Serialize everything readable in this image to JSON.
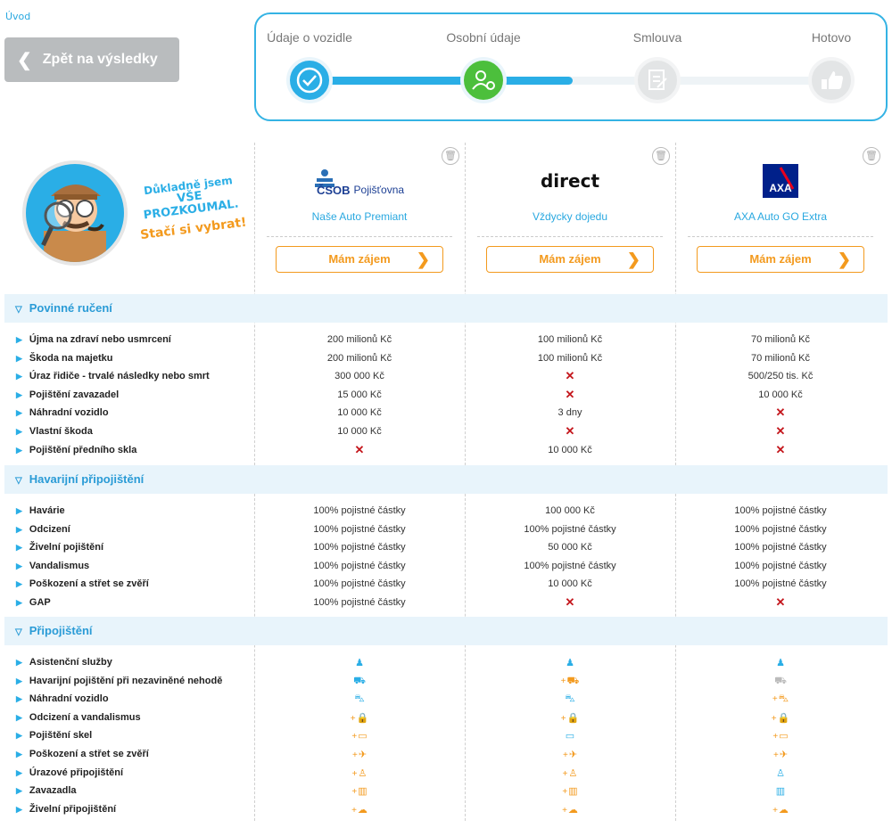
{
  "breadcrumb": "Úvod",
  "back_button": "Zpět na výsledky",
  "steps": [
    {
      "label": "Údaje o vozidle",
      "state": "done"
    },
    {
      "label": "Osobní údaje",
      "state": "active"
    },
    {
      "label": "Smlouva",
      "state": "pending"
    },
    {
      "label": "Hotovo",
      "state": "pending"
    }
  ],
  "slogan": {
    "line1": "Důkladně jsem",
    "line2": "VŠE",
    "line3": "PROZKOUMAL.",
    "line4": "Stačí si vybrat!"
  },
  "insurers": [
    {
      "logo_text": "ČSOB",
      "logo_text2": "Pojišťovna",
      "product": "Naše Auto Premiant",
      "button": "Mám zájem"
    },
    {
      "logo_text": "direct",
      "product": "Vždycky dojedu",
      "button": "Mám zájem"
    },
    {
      "logo_text": "AXA",
      "product": "AXA Auto GO Extra",
      "button": "Mám zájem"
    }
  ],
  "sections": [
    {
      "title": "Povinné ručení",
      "rows": [
        {
          "label": "Újma na zdraví nebo usmrcení",
          "values": [
            "200 milionů Kč",
            "100 milionů Kč",
            "70 milionů Kč"
          ]
        },
        {
          "label": "Škoda na majetku",
          "values": [
            "200 milionů Kč",
            "100 milionů Kč",
            "70 milionů Kč"
          ]
        },
        {
          "label": "Úraz řidiče - trvalé následky nebo smrt",
          "values": [
            "300 000 Kč",
            "x",
            "500/250 tis. Kč"
          ]
        },
        {
          "label": "Pojištění zavazadel",
          "values": [
            "15 000 Kč",
            "x",
            "10 000 Kč"
          ]
        },
        {
          "label": "Náhradní vozidlo",
          "values": [
            "10 000 Kč",
            "3 dny",
            "x"
          ]
        },
        {
          "label": "Vlastní škoda",
          "values": [
            "10 000 Kč",
            "x",
            "x"
          ]
        },
        {
          "label": "Pojištění předního skla",
          "values": [
            "x",
            "10 000 Kč",
            "x"
          ]
        }
      ]
    },
    {
      "title": "Havarijní připojištění",
      "rows": [
        {
          "label": "Havárie",
          "values": [
            "100% pojistné částky",
            "100 000 Kč",
            "100% pojistné částky"
          ]
        },
        {
          "label": "Odcizení",
          "values": [
            "100% pojistné částky",
            "100% pojistné částky",
            "100% pojistné částky"
          ]
        },
        {
          "label": "Živelní pojištění",
          "values": [
            "100% pojistné částky",
            "50 000 Kč",
            "100% pojistné částky"
          ]
        },
        {
          "label": "Vandalismus",
          "values": [
            "100% pojistné částky",
            "100% pojistné částky",
            "100% pojistné částky"
          ]
        },
        {
          "label": "Poškození a střet se zvěří",
          "values": [
            "100% pojistné částky",
            "10 000 Kč",
            "100% pojistné částky"
          ]
        },
        {
          "label": "GAP",
          "values": [
            "100% pojistné částky",
            "x",
            "x"
          ]
        }
      ]
    },
    {
      "title": "Připojištění",
      "rows": [
        {
          "label": "Asistenční služby",
          "icons": [
            {
              "icon": "assistance-icon",
              "glyph": "♟",
              "style": "blue",
              "plus": false
            },
            {
              "icon": "assistance-icon",
              "glyph": "♟",
              "style": "blue",
              "plus": false
            },
            {
              "icon": "assistance-icon",
              "glyph": "♟",
              "style": "blue",
              "plus": false
            }
          ]
        },
        {
          "label": "Havarijní pojištění při nezaviněné nehodě",
          "icons": [
            {
              "icon": "cars-crash-icon",
              "glyph": "⛟",
              "style": "blue",
              "plus": false
            },
            {
              "icon": "cars-crash-icon",
              "glyph": "⛟",
              "style": "orange",
              "plus": true
            },
            {
              "icon": "cars-crash-icon",
              "glyph": "⛟",
              "style": "grey",
              "plus": false
            }
          ]
        },
        {
          "label": "Náhradní vozidlo",
          "icons": [
            {
              "icon": "car-icon",
              "glyph": "⛍",
              "style": "blue",
              "plus": false
            },
            {
              "icon": "car-icon",
              "glyph": "⛍",
              "style": "blue",
              "plus": false
            },
            {
              "icon": "car-icon",
              "glyph": "⛍",
              "style": "orange",
              "plus": true
            }
          ]
        },
        {
          "label": "Odcizení a vandalismus",
          "icons": [
            {
              "icon": "lock-icon",
              "glyph": "🔒",
              "style": "orange",
              "plus": true
            },
            {
              "icon": "lock-icon",
              "glyph": "🔒",
              "style": "orange",
              "plus": true
            },
            {
              "icon": "lock-icon",
              "glyph": "🔒",
              "style": "orange",
              "plus": true
            }
          ]
        },
        {
          "label": "Pojištění skel",
          "icons": [
            {
              "icon": "glass-icon",
              "glyph": "▭",
              "style": "orange",
              "plus": true
            },
            {
              "icon": "glass-icon",
              "glyph": "▭",
              "style": "blue",
              "plus": false
            },
            {
              "icon": "glass-icon",
              "glyph": "▭",
              "style": "orange",
              "plus": true
            }
          ]
        },
        {
          "label": "Poškození a střet se zvěří",
          "icons": [
            {
              "icon": "deer-icon",
              "glyph": "✈",
              "style": "orange",
              "plus": true
            },
            {
              "icon": "deer-icon",
              "glyph": "✈",
              "style": "orange",
              "plus": true
            },
            {
              "icon": "deer-icon",
              "glyph": "✈",
              "style": "orange",
              "plus": true
            }
          ]
        },
        {
          "label": "Úrazové připojištění",
          "icons": [
            {
              "icon": "injury-icon",
              "glyph": "♙",
              "style": "orange",
              "plus": true
            },
            {
              "icon": "injury-icon",
              "glyph": "♙",
              "style": "orange",
              "plus": true
            },
            {
              "icon": "injury-icon",
              "glyph": "♙",
              "style": "blue",
              "plus": false
            }
          ]
        },
        {
          "label": "Zavazadla",
          "icons": [
            {
              "icon": "luggage-icon",
              "glyph": "▥",
              "style": "orange",
              "plus": true
            },
            {
              "icon": "luggage-icon",
              "glyph": "▥",
              "style": "orange",
              "plus": true
            },
            {
              "icon": "luggage-icon",
              "glyph": "▥",
              "style": "blue",
              "plus": false
            }
          ]
        },
        {
          "label": "Živelní připojištění",
          "icons": [
            {
              "icon": "weather-icon",
              "glyph": "☁",
              "style": "orange",
              "plus": true
            },
            {
              "icon": "weather-icon",
              "glyph": "☁",
              "style": "orange",
              "plus": true
            },
            {
              "icon": "weather-icon",
              "glyph": "☁",
              "style": "orange",
              "plus": true
            }
          ]
        }
      ]
    }
  ],
  "colors": {
    "accent": "#2aaee6",
    "orange": "#f39a1e",
    "cross": "#c4161c",
    "active_step": "#4cbf3c"
  }
}
